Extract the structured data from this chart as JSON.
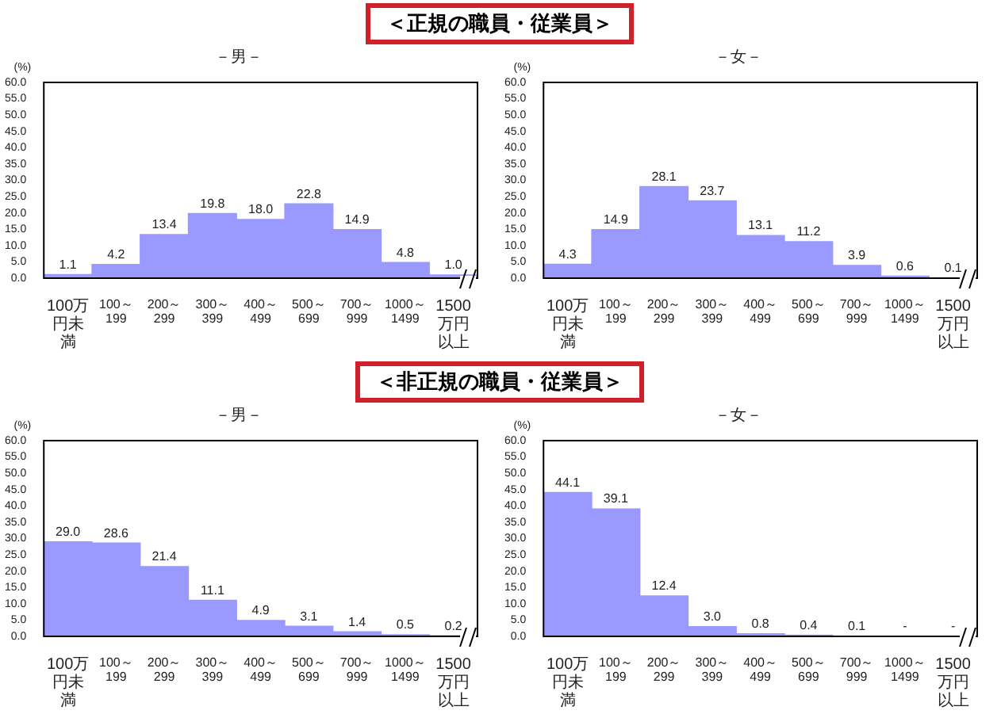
{
  "chart_data": [
    {
      "type": "bar",
      "title": "＜正規の職員・従業員＞",
      "subtitle": "－男－",
      "ylabel": "(%)",
      "color": "#9999ff",
      "categories": [
        "100万円未満",
        "100～199",
        "200～299",
        "300～399",
        "400～499",
        "500～699",
        "700～999",
        "1000～1499",
        "1500万円以上"
      ],
      "values": [
        1.1,
        4.2,
        13.4,
        19.8,
        18.0,
        22.8,
        14.9,
        4.8,
        1.0
      ],
      "value_labels": [
        "1.1",
        "4.2",
        "13.4",
        "19.8",
        "18.0",
        "22.8",
        "14.9",
        "4.8",
        "1.0"
      ],
      "ylim": [
        0,
        60
      ],
      "yticks": [
        {
          "value": 0,
          "label": "0.0"
        },
        {
          "value": 5,
          "label": "5.0"
        },
        {
          "value": 10,
          "label": "10.0"
        },
        {
          "value": 15,
          "label": "15.0"
        },
        {
          "value": 20,
          "label": "20.0"
        },
        {
          "value": 25,
          "label": "25.0"
        },
        {
          "value": 30,
          "label": "30.0"
        },
        {
          "value": 35,
          "label": "35.0"
        },
        {
          "value": 40,
          "label": "40.0"
        },
        {
          "value": 45,
          "label": "45.0"
        },
        {
          "value": 50,
          "label": "50.0"
        },
        {
          "value": 55,
          "label": "55.0"
        },
        {
          "value": 60,
          "label": "60.0"
        }
      ]
    },
    {
      "type": "bar",
      "subtitle": "－女－",
      "ylabel": "(%)",
      "color": "#9999ff",
      "categories": [
        "100万円未満",
        "100～199",
        "200～299",
        "300～399",
        "400～499",
        "500～699",
        "700～999",
        "1000～1499",
        "1500万円以上"
      ],
      "values": [
        4.3,
        14.9,
        28.1,
        23.7,
        13.1,
        11.2,
        3.9,
        0.6,
        0.1
      ],
      "value_labels": [
        "4.3",
        "14.9",
        "28.1",
        "23.7",
        "13.1",
        "11.2",
        "3.9",
        "0.6",
        "0.1"
      ],
      "ylim": [
        0,
        60
      ],
      "yticks": [
        {
          "value": 0,
          "label": "0.0"
        },
        {
          "value": 5,
          "label": "5.0"
        },
        {
          "value": 10,
          "label": "10.0"
        },
        {
          "value": 15,
          "label": "15.0"
        },
        {
          "value": 20,
          "label": "20.0"
        },
        {
          "value": 25,
          "label": "25.0"
        },
        {
          "value": 30,
          "label": "30.0"
        },
        {
          "value": 35,
          "label": "35.0"
        },
        {
          "value": 40,
          "label": "40.0"
        },
        {
          "value": 45,
          "label": "45.0"
        },
        {
          "value": 50,
          "label": "50.0"
        },
        {
          "value": 55,
          "label": "55.0"
        },
        {
          "value": 60,
          "label": "60.0"
        }
      ]
    },
    {
      "type": "bar",
      "title": "＜非正規の職員・従業員＞",
      "subtitle": "－男－",
      "ylabel": "(%)",
      "color": "#9999ff",
      "categories": [
        "100万円未満",
        "100～199",
        "200～299",
        "300～399",
        "400～499",
        "500～699",
        "700～999",
        "1000～1499",
        "1500万円以上"
      ],
      "values": [
        29.0,
        28.6,
        21.4,
        11.1,
        4.9,
        3.1,
        1.4,
        0.5,
        0.2
      ],
      "value_labels": [
        "29.0",
        "28.6",
        "21.4",
        "11.1",
        "4.9",
        "3.1",
        "1.4",
        "0.5",
        "0.2"
      ],
      "ylim": [
        0,
        60
      ],
      "yticks": [
        {
          "value": 0,
          "label": "0.0"
        },
        {
          "value": 5,
          "label": "5.0"
        },
        {
          "value": 10,
          "label": "10.0"
        },
        {
          "value": 15,
          "label": "15.0"
        },
        {
          "value": 20,
          "label": "20.0"
        },
        {
          "value": 25,
          "label": "25.0"
        },
        {
          "value": 30,
          "label": "30.0"
        },
        {
          "value": 35,
          "label": "35.0"
        },
        {
          "value": 40,
          "label": "40.0"
        },
        {
          "value": 45,
          "label": "45.0"
        },
        {
          "value": 50,
          "label": "50.0"
        },
        {
          "value": 55,
          "label": "55.0"
        },
        {
          "value": 60,
          "label": "60.0"
        }
      ]
    },
    {
      "type": "bar",
      "subtitle": "－女－",
      "ylabel": "(%)",
      "color": "#9999ff",
      "categories": [
        "100万円未満",
        "100～199",
        "200～299",
        "300～399",
        "400～499",
        "500～699",
        "700～999",
        "1000～1499",
        "1500万円以上"
      ],
      "values": [
        44.1,
        39.1,
        12.4,
        3.0,
        0.8,
        0.4,
        0.1,
        null,
        null
      ],
      "value_labels": [
        "44.1",
        "39.1",
        "12.4",
        "3.0",
        "0.8",
        "0.4",
        "0.1",
        "-",
        "-"
      ],
      "ylim": [
        0,
        60
      ],
      "yticks": [
        {
          "value": 0,
          "label": "0.0"
        },
        {
          "value": 5,
          "label": "5.0"
        },
        {
          "value": 10,
          "label": "10.0"
        },
        {
          "value": 15,
          "label": "15.0"
        },
        {
          "value": 20,
          "label": "20.0"
        },
        {
          "value": 25,
          "label": "25.0"
        },
        {
          "value": 30,
          "label": "30.0"
        },
        {
          "value": 35,
          "label": "35.0"
        },
        {
          "value": 40,
          "label": "40.0"
        },
        {
          "value": 45,
          "label": "45.0"
        },
        {
          "value": 50,
          "label": "50.0"
        },
        {
          "value": 55,
          "label": "55.0"
        },
        {
          "value": 60,
          "label": "60.0"
        }
      ]
    }
  ]
}
